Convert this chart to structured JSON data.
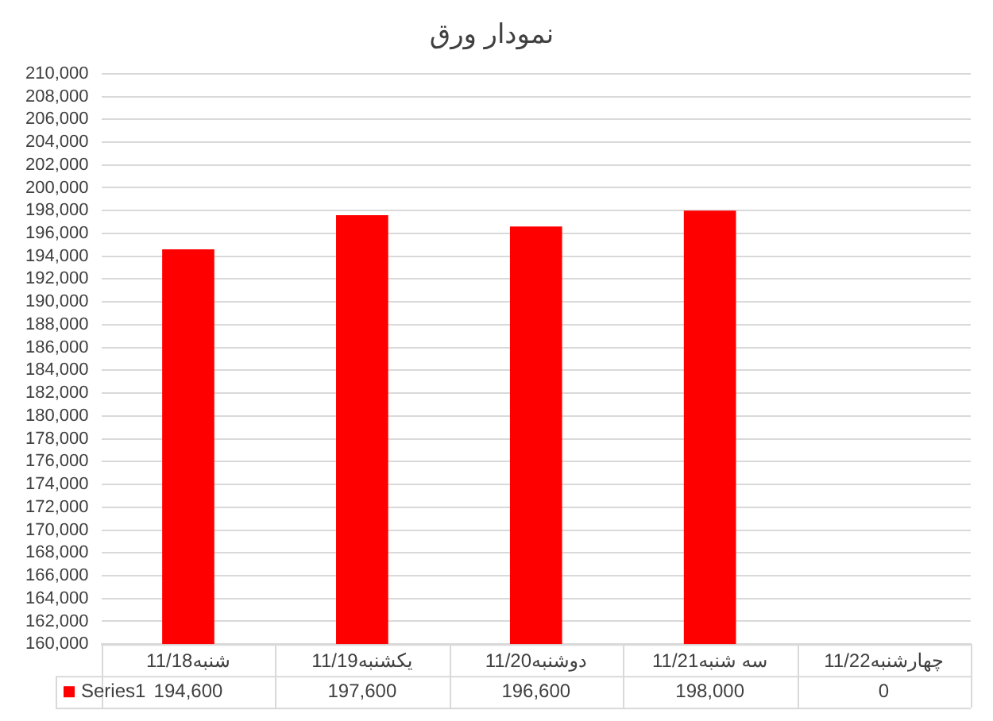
{
  "chart_data": {
    "type": "bar",
    "title": "نمودار ورق",
    "categories": [
      "شنبه11/18",
      "یکشنبه11/19",
      "دوشنبه11/20",
      "سه شنبه11/21",
      "چهارشنبه11/22"
    ],
    "series": [
      {
        "name": "Series1",
        "color": "#ff0000",
        "values": [
          194600,
          197600,
          196600,
          198000,
          null
        ],
        "value_labels": [
          "194,600",
          "197,600",
          "196,600",
          "198,000",
          "0"
        ]
      }
    ],
    "ylim": [
      160000,
      210000
    ],
    "yticks": [
      {
        "value": 160000,
        "label": "160,000"
      },
      {
        "value": 162000,
        "label": "162,000"
      },
      {
        "value": 164000,
        "label": "164,000"
      },
      {
        "value": 166000,
        "label": "166,000"
      },
      {
        "value": 168000,
        "label": "168,000"
      },
      {
        "value": 170000,
        "label": "170,000"
      },
      {
        "value": 172000,
        "label": "172,000"
      },
      {
        "value": 174000,
        "label": "174,000"
      },
      {
        "value": 176000,
        "label": "176,000"
      },
      {
        "value": 178000,
        "label": "178,000"
      },
      {
        "value": 180000,
        "label": "180,000"
      },
      {
        "value": 182000,
        "label": "182,000"
      },
      {
        "value": 184000,
        "label": "184,000"
      },
      {
        "value": 186000,
        "label": "186,000"
      },
      {
        "value": 188000,
        "label": "188,000"
      },
      {
        "value": 190000,
        "label": "190,000"
      },
      {
        "value": 192000,
        "label": "192,000"
      },
      {
        "value": 194000,
        "label": "194,000"
      },
      {
        "value": 196000,
        "label": "196,000"
      },
      {
        "value": 198000,
        "label": "198,000"
      },
      {
        "value": 200000,
        "label": "200,000"
      },
      {
        "value": 202000,
        "label": "202,000"
      },
      {
        "value": 204000,
        "label": "204,000"
      },
      {
        "value": 206000,
        "label": "206,000"
      },
      {
        "value": 208000,
        "label": "208,000"
      },
      {
        "value": 210000,
        "label": "210,000"
      }
    ],
    "grid": "y",
    "legend": "bottom"
  }
}
